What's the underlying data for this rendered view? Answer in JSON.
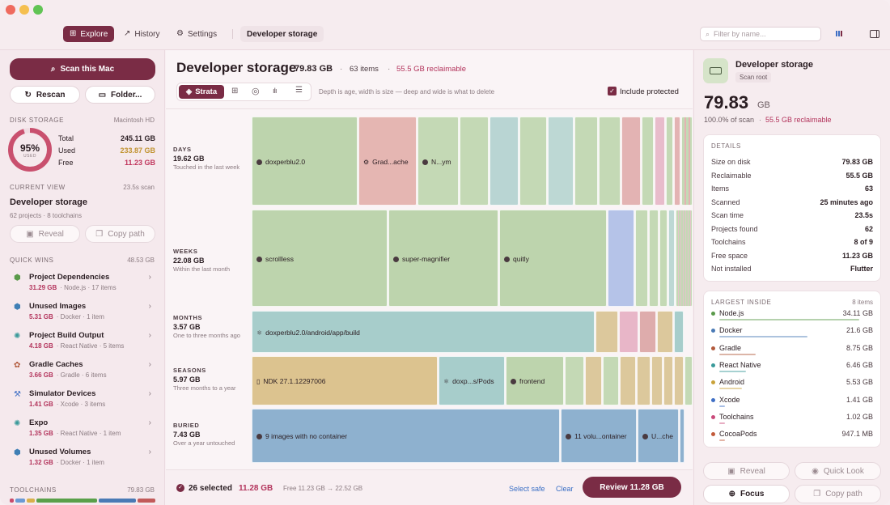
{
  "window": {
    "lights": [
      "#ef6a5e",
      "#f5bf4f",
      "#61c454"
    ]
  },
  "toolbar": {
    "tabs": [
      {
        "label": "Explore",
        "icon": "grid-icon"
      },
      {
        "label": "History",
        "icon": "chart-icon"
      },
      {
        "label": "Settings",
        "icon": "gear-icon"
      }
    ],
    "breadcrumb": "Developer storage",
    "search_placeholder": "Filter by name..."
  },
  "sidebar": {
    "scan_label": "Scan this Mac",
    "rescan_label": "Rescan",
    "folder_label": "Folder...",
    "disk": {
      "heading": "DISK STORAGE",
      "volume": "Macintosh HD",
      "percent": "95%",
      "percent_caption": "USED",
      "used_fraction": 0.95,
      "total_label": "Total",
      "total": "245.11 GB",
      "used_label": "Used",
      "used": "233.87 GB",
      "free_label": "Free",
      "free": "11.23 GB"
    },
    "current": {
      "heading": "CURRENT VIEW",
      "scan_time": "23.5s scan",
      "title": "Developer storage",
      "subtitle": "62 projects · 8 toolchains",
      "reveal": "Reveal",
      "copy": "Copy path"
    },
    "quick_wins": {
      "heading": "QUICK WINS",
      "total": "48.53 GB",
      "items": [
        {
          "title": "Project Dependencies",
          "size": "31.29 GB",
          "meta": "· Node.js · 17 items",
          "icon": "node-icon",
          "color": "#5a9a4a"
        },
        {
          "title": "Unused Images",
          "size": "5.31 GB",
          "meta": "· Docker · 1 item",
          "icon": "cube-icon",
          "color": "#3f7fb5"
        },
        {
          "title": "Project Build Output",
          "size": "4.18 GB",
          "meta": "· React Native · 5 items",
          "icon": "atom-icon",
          "color": "#3a9a9a"
        },
        {
          "title": "Gradle Caches",
          "size": "3.66 GB",
          "meta": "· Gradle · 6 items",
          "icon": "gradle-icon",
          "color": "#b25a3c"
        },
        {
          "title": "Simulator Devices",
          "size": "1.41 GB",
          "meta": "· Xcode · 3 items",
          "icon": "hammer-icon",
          "color": "#3f6fc5"
        },
        {
          "title": "Expo",
          "size": "1.35 GB",
          "meta": "· React Native · 1 item",
          "icon": "atom-icon",
          "color": "#3a9a9a"
        },
        {
          "title": "Unused Volumes",
          "size": "1.32 GB",
          "meta": "· Docker · 1 item",
          "icon": "cube-icon",
          "color": "#3f7fb5"
        }
      ]
    },
    "toolchains": {
      "heading": "TOOLCHAINS",
      "total": "79.83 GB",
      "bar": [
        {
          "c": "#c94a6a",
          "w": 5
        },
        {
          "c": "#6a9ad5",
          "w": 12
        },
        {
          "c": "#d8b04a",
          "w": 10
        },
        {
          "c": "#5aa04a",
          "w": 75
        },
        {
          "c": "#4a7ab5",
          "w": 46
        },
        {
          "c": "#c25a5a",
          "w": 22
        }
      ]
    }
  },
  "main": {
    "title": "Developer storage",
    "size": "79.83 GB",
    "items": "63 items",
    "reclaimable": "55.5 GB reclaimable",
    "views": [
      {
        "label": "Strata",
        "icon": "layers-icon"
      },
      {
        "label": "",
        "icon": "grid-icon"
      },
      {
        "label": "",
        "icon": "sunburst-icon"
      },
      {
        "label": "",
        "icon": "bars-icon"
      },
      {
        "label": "",
        "icon": "list-icon"
      }
    ],
    "hint": "Depth is age, width is size — deep and wide is what to delete",
    "include_protected": "Include protected",
    "strata": [
      {
        "name": "DAYS",
        "size": "19.62 GB",
        "desc": "Touched in the last week"
      },
      {
        "name": "WEEKS",
        "size": "22.08 GB",
        "desc": "Within the last month"
      },
      {
        "name": "MONTHS",
        "size": "3.57 GB",
        "desc": "One to three months ago"
      },
      {
        "name": "SEASONS",
        "size": "5.97 GB",
        "desc": "Three months to a year"
      },
      {
        "name": "BURIED",
        "size": "7.43 GB",
        "desc": "Over a year untouched"
      }
    ],
    "labels": {
      "d1": "doxperblu2.0",
      "d2": "Grad...ache",
      "d3": "N...ym",
      "w1": "scrollless",
      "w2": "super-magnifier",
      "w3": "quitly",
      "m1": "doxperblu2.0/android/app/build",
      "s1": "NDK 27.1.12297006",
      "s2": "doxp...s/Pods",
      "s3": "frontend",
      "b1": "9 images with no container",
      "b2": "11 volu...ontainer",
      "b3": "U...che"
    },
    "footer": {
      "selected": "26 selected",
      "selected_size": "11.28 GB",
      "free_change": "Free 11.23 GB → 22.52 GB",
      "select_safe": "Select safe",
      "clear": "Clear",
      "review": "Review 11.28 GB"
    }
  },
  "inspector": {
    "title": "Developer storage",
    "subtitle": "Scan root",
    "size_num": "79.83",
    "size_unit": "GB",
    "scan_pct": "100.0% of scan",
    "reclaim": "55.5 GB reclaimable",
    "details_heading": "DETAILS",
    "details": [
      {
        "k": "Size on disk",
        "v": "79.83 GB"
      },
      {
        "k": "Reclaimable",
        "v": "55.5 GB"
      },
      {
        "k": "Items",
        "v": "63"
      },
      {
        "k": "Scanned",
        "v": "25 minutes ago"
      },
      {
        "k": "Scan time",
        "v": "23.5s"
      },
      {
        "k": "Projects found",
        "v": "62"
      },
      {
        "k": "Toolchains",
        "v": "8 of 9"
      },
      {
        "k": "Free space",
        "v": "11.23 GB"
      },
      {
        "k": "Not installed",
        "v": "Flutter"
      }
    ],
    "largest_heading": "LARGEST INSIDE",
    "largest_count": "8 items",
    "largest": [
      {
        "name": "Node.js",
        "size": "34.11 GB",
        "color": "#5a9a4a",
        "frac": 1.0
      },
      {
        "name": "Docker",
        "size": "21.6 GB",
        "color": "#4a7ab5",
        "frac": 0.63
      },
      {
        "name": "Gradle",
        "size": "8.75 GB",
        "color": "#b25a3c",
        "frac": 0.26
      },
      {
        "name": "React Native",
        "size": "6.46 GB",
        "color": "#3a9a9a",
        "frac": 0.19
      },
      {
        "name": "Android",
        "size": "5.53 GB",
        "color": "#c9a23a",
        "frac": 0.16
      },
      {
        "name": "Xcode",
        "size": "1.41 GB",
        "color": "#3f6fc5",
        "frac": 0.04
      },
      {
        "name": "Toolchains",
        "size": "1.02 GB",
        "color": "#c94a7a",
        "frac": 0.03
      },
      {
        "name": "CocoaPods",
        "size": "947.1 MB",
        "color": "#c25a3a",
        "frac": 0.03
      }
    ],
    "actions": {
      "reveal": "Reveal",
      "quick_look": "Quick Look",
      "focus": "Focus",
      "copy": "Copy path"
    }
  }
}
